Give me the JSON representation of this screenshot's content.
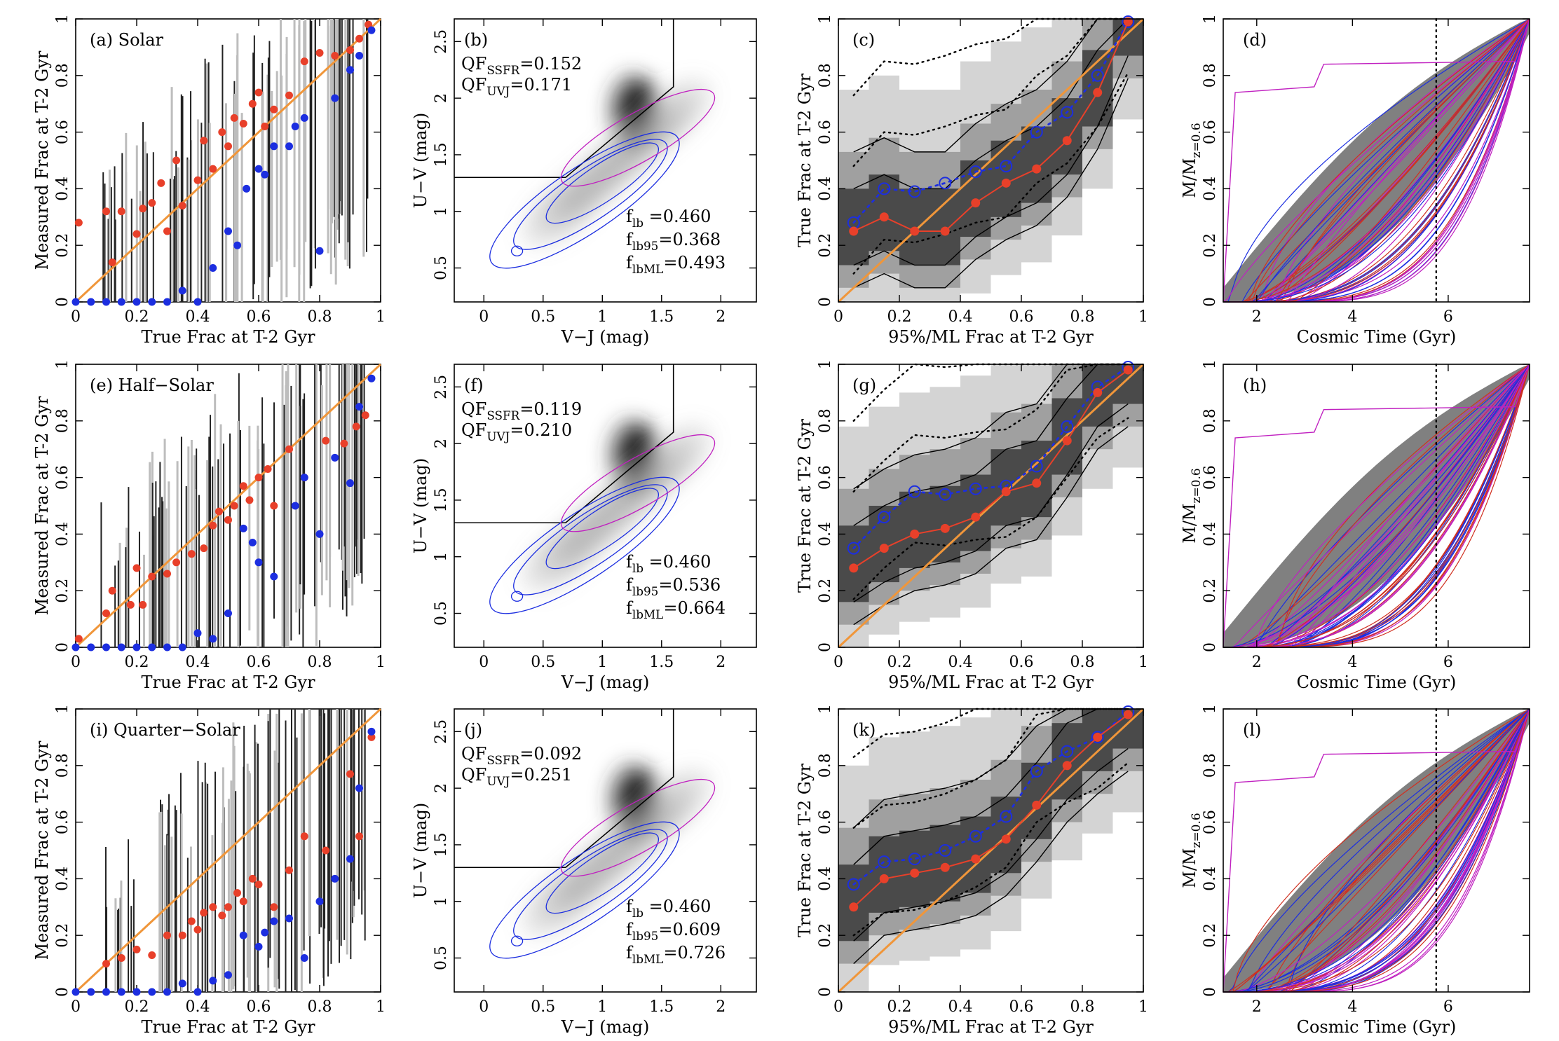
{
  "chart_data": [
    {
      "type": "scatter",
      "panel": "a",
      "label": "(a) Solar",
      "xlabel": "True Frac at T-2 Gyr",
      "ylabel": "Measured Frac at T-2 Gyr",
      "xlim": [
        0,
        1
      ],
      "ylim": [
        0,
        1
      ],
      "xticks": [
        "0",
        "0.2",
        "0.4",
        "0.6",
        "0.8",
        "1"
      ],
      "yticks": [
        "0",
        "0.2",
        "0.4",
        "0.6",
        "0.8",
        "1"
      ],
      "reference_line": "one-to-one",
      "series": [
        {
          "name": "red points",
          "color": "#e8402a",
          "x": [
            0.01,
            0.1,
            0.12,
            0.15,
            0.2,
            0.22,
            0.25,
            0.28,
            0.3,
            0.33,
            0.35,
            0.4,
            0.42,
            0.45,
            0.48,
            0.5,
            0.52,
            0.55,
            0.58,
            0.6,
            0.62,
            0.65,
            0.7,
            0.75,
            0.8,
            0.85,
            0.9,
            0.93,
            0.96
          ],
          "y": [
            0.28,
            0.32,
            0.14,
            0.32,
            0.24,
            0.33,
            0.35,
            0.42,
            0.25,
            0.5,
            0.34,
            0.43,
            0.57,
            0.47,
            0.6,
            0.55,
            0.65,
            0.63,
            0.7,
            0.74,
            0.62,
            0.68,
            0.73,
            0.85,
            0.88,
            0.87,
            0.89,
            0.93,
            0.98
          ]
        },
        {
          "name": "blue points",
          "color": "#1c2ee0",
          "x": [
            0.0,
            0.05,
            0.1,
            0.15,
            0.2,
            0.25,
            0.3,
            0.35,
            0.4,
            0.45,
            0.5,
            0.53,
            0.56,
            0.6,
            0.62,
            0.65,
            0.7,
            0.72,
            0.75,
            0.8,
            0.85,
            0.9,
            0.93,
            0.97
          ],
          "y": [
            0.0,
            0.0,
            0.0,
            0.0,
            0.0,
            0.0,
            0.0,
            0.04,
            0.0,
            0.12,
            0.25,
            0.2,
            0.4,
            0.47,
            0.45,
            0.55,
            0.55,
            0.62,
            0.65,
            0.18,
            0.72,
            0.82,
            0.87,
            0.96
          ]
        }
      ]
    },
    {
      "type": "scatter",
      "panel": "b",
      "label": "(b)",
      "xlabel": "V−J (mag)",
      "ylabel": "U−V (mag)",
      "xlim": [
        -0.25,
        2.3
      ],
      "ylim": [
        0.2,
        2.7
      ],
      "xticks": [
        "0",
        "0.5",
        "1",
        "1.5",
        "2"
      ],
      "yticks": [
        "0.5",
        "1",
        "1.5",
        "2",
        "2.5"
      ],
      "annotations": {
        "qf_ssfr": "QF",
        "qf_ssfr_sub": "SSFR",
        "qf_ssfr_val": "=0.152",
        "qf_uvj": "QF",
        "qf_uvj_sub": "UVJ",
        "qf_uvj_val": "=0.171",
        "flb": "f",
        "flb_sub": "lb",
        "flb_val": "=0.460",
        "flb95": "f",
        "flb95_sub": "lb95",
        "flb95_val": "=0.368",
        "flbml": "f",
        "flbml_sub": "lbML",
        "flbml_val": "=0.493"
      }
    },
    {
      "type": "line",
      "panel": "c",
      "label": "(c)",
      "xlabel": "95%/ML Frac at T-2 Gyr",
      "ylabel": "True Frac at T-2 Gyr",
      "xlim": [
        0,
        1
      ],
      "ylim": [
        0,
        1
      ],
      "xticks": [
        "0",
        "0.2",
        "0.4",
        "0.6",
        "0.8",
        "1"
      ],
      "yticks": [
        "0",
        "0.2",
        "0.4",
        "0.6",
        "0.8",
        "1"
      ],
      "series": [
        {
          "name": "95% median",
          "color": "#1c2ee0",
          "x": [
            0.05,
            0.15,
            0.25,
            0.35,
            0.45,
            0.55,
            0.65,
            0.75,
            0.85,
            0.95
          ],
          "y": [
            0.28,
            0.4,
            0.39,
            0.42,
            0.46,
            0.48,
            0.6,
            0.67,
            0.8,
            0.99
          ]
        },
        {
          "name": "ML median",
          "color": "#e8402a",
          "x": [
            0.05,
            0.15,
            0.25,
            0.35,
            0.45,
            0.55,
            0.65,
            0.75,
            0.85,
            0.95
          ],
          "y": [
            0.25,
            0.3,
            0.25,
            0.25,
            0.35,
            0.42,
            0.47,
            0.57,
            0.74,
            0.99
          ]
        }
      ]
    },
    {
      "type": "line",
      "panel": "d",
      "label": "(d)",
      "xlabel": "Cosmic Time (Gyr)",
      "ylabel": "M/M",
      "ylabel_sub": "z=0.6",
      "xlim": [
        1.3,
        7.7
      ],
      "ylim": [
        0,
        1
      ],
      "xticks": [
        "2",
        "4",
        "6"
      ],
      "yticks": [
        "0",
        "0.2",
        "0.4",
        "0.6",
        "0.8",
        "1"
      ],
      "vline": 5.75
    },
    {
      "type": "scatter",
      "panel": "e",
      "label": "(e) Half−Solar",
      "xlabel": "True Frac at T-2 Gyr",
      "ylabel": "Measured Frac at T-2 Gyr",
      "xlim": [
        0,
        1
      ],
      "ylim": [
        0,
        1
      ],
      "xticks": [
        "0",
        "0.2",
        "0.4",
        "0.6",
        "0.8",
        "1"
      ],
      "yticks": [
        "0",
        "0.2",
        "0.4",
        "0.6",
        "0.8",
        "1"
      ],
      "reference_line": "one-to-one",
      "series": [
        {
          "name": "red points",
          "color": "#e8402a",
          "x": [
            0.01,
            0.1,
            0.12,
            0.18,
            0.2,
            0.22,
            0.25,
            0.3,
            0.33,
            0.38,
            0.42,
            0.45,
            0.47,
            0.5,
            0.52,
            0.55,
            0.57,
            0.6,
            0.63,
            0.65,
            0.7,
            0.75,
            0.82,
            0.88,
            0.92,
            0.95
          ],
          "y": [
            0.03,
            0.12,
            0.2,
            0.15,
            0.28,
            0.15,
            0.25,
            0.26,
            0.3,
            0.33,
            0.35,
            0.43,
            0.48,
            0.45,
            0.5,
            0.57,
            0.52,
            0.6,
            0.63,
            0.5,
            0.7,
            0.6,
            0.73,
            0.72,
            0.78,
            0.82
          ]
        },
        {
          "name": "blue points",
          "color": "#1c2ee0",
          "x": [
            0.0,
            0.05,
            0.1,
            0.15,
            0.2,
            0.25,
            0.3,
            0.35,
            0.4,
            0.45,
            0.5,
            0.55,
            0.58,
            0.6,
            0.65,
            0.72,
            0.75,
            0.8,
            0.85,
            0.9,
            0.93,
            0.97
          ],
          "y": [
            0.0,
            0.0,
            0.0,
            0.0,
            0.0,
            0.0,
            0.0,
            0.0,
            0.05,
            0.03,
            0.12,
            0.42,
            0.37,
            0.3,
            0.25,
            0.5,
            0.6,
            0.4,
            0.67,
            0.58,
            0.85,
            0.95
          ]
        }
      ]
    },
    {
      "type": "scatter",
      "panel": "f",
      "label": "(f)",
      "xlabel": "V−J (mag)",
      "ylabel": "U−V (mag)",
      "xlim": [
        -0.25,
        2.3
      ],
      "ylim": [
        0.2,
        2.7
      ],
      "xticks": [
        "0",
        "0.5",
        "1",
        "1.5",
        "2"
      ],
      "yticks": [
        "0.5",
        "1",
        "1.5",
        "2",
        "2.5"
      ],
      "annotations": {
        "qf_ssfr": "QF",
        "qf_ssfr_sub": "SSFR",
        "qf_ssfr_val": "=0.119",
        "qf_uvj": "QF",
        "qf_uvj_sub": "UVJ",
        "qf_uvj_val": "=0.210",
        "flb": "f",
        "flb_sub": "lb",
        "flb_val": "=0.460",
        "flb95": "f",
        "flb95_sub": "lb95",
        "flb95_val": "=0.536",
        "flbml": "f",
        "flbml_sub": "lbML",
        "flbml_val": "=0.664"
      }
    },
    {
      "type": "line",
      "panel": "g",
      "label": "(g)",
      "xlabel": "95%/ML Frac at T-2 Gyr",
      "ylabel": "True Frac at T-2 Gyr",
      "xlim": [
        0,
        1
      ],
      "ylim": [
        0,
        1
      ],
      "xticks": [
        "0",
        "0.2",
        "0.4",
        "0.6",
        "0.8",
        "1"
      ],
      "yticks": [
        "0",
        "0.2",
        "0.4",
        "0.6",
        "0.8",
        "1"
      ],
      "series": [
        {
          "name": "95% median",
          "color": "#1c2ee0",
          "x": [
            0.05,
            0.15,
            0.25,
            0.35,
            0.45,
            0.55,
            0.65,
            0.75,
            0.85,
            0.95
          ],
          "y": [
            0.35,
            0.46,
            0.55,
            0.54,
            0.56,
            0.57,
            0.64,
            0.78,
            0.92,
            0.99
          ]
        },
        {
          "name": "ML median",
          "color": "#e8402a",
          "x": [
            0.05,
            0.15,
            0.25,
            0.35,
            0.45,
            0.55,
            0.65,
            0.75,
            0.85,
            0.95
          ],
          "y": [
            0.28,
            0.35,
            0.4,
            0.42,
            0.46,
            0.55,
            0.58,
            0.73,
            0.9,
            0.98
          ]
        }
      ]
    },
    {
      "type": "line",
      "panel": "h",
      "label": "(h)",
      "xlabel": "Cosmic Time (Gyr)",
      "ylabel": "M/M",
      "ylabel_sub": "z=0.6",
      "xlim": [
        1.3,
        7.7
      ],
      "ylim": [
        0,
        1
      ],
      "xticks": [
        "2",
        "4",
        "6"
      ],
      "yticks": [
        "0",
        "0.2",
        "0.4",
        "0.6",
        "0.8",
        "1"
      ],
      "vline": 5.75
    },
    {
      "type": "scatter",
      "panel": "i",
      "label": "(i) Quarter−Solar",
      "xlabel": "True Frac at T-2 Gyr",
      "ylabel": "Measured Frac at T-2 Gyr",
      "xlim": [
        0,
        1
      ],
      "ylim": [
        0,
        1
      ],
      "xticks": [
        "0",
        "0.2",
        "0.4",
        "0.6",
        "0.8",
        "1"
      ],
      "yticks": [
        "0",
        "0.2",
        "0.4",
        "0.6",
        "0.8",
        "1"
      ],
      "reference_line": "one-to-one",
      "series": [
        {
          "name": "red points",
          "color": "#e8402a",
          "x": [
            0.1,
            0.15,
            0.2,
            0.25,
            0.3,
            0.35,
            0.38,
            0.4,
            0.42,
            0.45,
            0.48,
            0.5,
            0.53,
            0.55,
            0.58,
            0.6,
            0.65,
            0.7,
            0.75,
            0.82,
            0.9,
            0.93,
            0.97
          ],
          "y": [
            0.1,
            0.12,
            0.15,
            0.13,
            0.2,
            0.2,
            0.25,
            0.22,
            0.28,
            0.3,
            0.27,
            0.3,
            0.35,
            0.32,
            0.4,
            0.38,
            0.3,
            0.43,
            0.55,
            0.5,
            0.77,
            0.55,
            0.9
          ]
        },
        {
          "name": "blue points",
          "color": "#1c2ee0",
          "x": [
            0.0,
            0.05,
            0.1,
            0.15,
            0.2,
            0.25,
            0.3,
            0.35,
            0.4,
            0.45,
            0.5,
            0.55,
            0.6,
            0.62,
            0.65,
            0.7,
            0.75,
            0.8,
            0.85,
            0.9,
            0.93,
            0.97
          ],
          "y": [
            0.0,
            0.0,
            0.0,
            0.0,
            0.0,
            0.0,
            0.0,
            0.03,
            0.0,
            0.04,
            0.06,
            0.2,
            0.16,
            0.21,
            0.25,
            0.26,
            0.12,
            0.32,
            0.4,
            0.47,
            0.72,
            0.92
          ]
        }
      ]
    },
    {
      "type": "scatter",
      "panel": "j",
      "label": "(j)",
      "xlabel": "V−J (mag)",
      "ylabel": "U−V (mag)",
      "xlim": [
        -0.25,
        2.3
      ],
      "ylim": [
        0.2,
        2.7
      ],
      "xticks": [
        "0",
        "0.5",
        "1",
        "1.5",
        "2"
      ],
      "yticks": [
        "0.5",
        "1",
        "1.5",
        "2",
        "2.5"
      ],
      "annotations": {
        "qf_ssfr": "QF",
        "qf_ssfr_sub": "SSFR",
        "qf_ssfr_val": "=0.092",
        "qf_uvj": "QF",
        "qf_uvj_sub": "UVJ",
        "qf_uvj_val": "=0.251",
        "flb": "f",
        "flb_sub": "lb",
        "flb_val": "=0.460",
        "flb95": "f",
        "flb95_sub": "lb95",
        "flb95_val": "=0.609",
        "flbml": "f",
        "flbml_sub": "lbML",
        "flbml_val": "=0.726"
      }
    },
    {
      "type": "line",
      "panel": "k",
      "label": "(k)",
      "xlabel": "95%/ML Frac at T-2 Gyr",
      "ylabel": "True Frac at T-2 Gyr",
      "xlim": [
        0,
        1
      ],
      "ylim": [
        0,
        1
      ],
      "xticks": [
        "0",
        "0.2",
        "0.4",
        "0.6",
        "0.8",
        "1"
      ],
      "yticks": [
        "0",
        "0.2",
        "0.4",
        "0.6",
        "0.8",
        "1"
      ],
      "series": [
        {
          "name": "95% median",
          "color": "#1c2ee0",
          "x": [
            0.05,
            0.15,
            0.25,
            0.35,
            0.45,
            0.55,
            0.65,
            0.75,
            0.85,
            0.95
          ],
          "y": [
            0.38,
            0.46,
            0.47,
            0.5,
            0.55,
            0.62,
            0.78,
            0.85,
            0.9,
            0.99
          ]
        },
        {
          "name": "ML median",
          "color": "#e8402a",
          "x": [
            0.05,
            0.15,
            0.25,
            0.35,
            0.45,
            0.55,
            0.65,
            0.75,
            0.85,
            0.95
          ],
          "y": [
            0.3,
            0.4,
            0.42,
            0.44,
            0.47,
            0.54,
            0.66,
            0.8,
            0.9,
            0.98
          ]
        }
      ]
    },
    {
      "type": "line",
      "panel": "l",
      "label": "(l)",
      "xlabel": "Cosmic Time (Gyr)",
      "ylabel": "M/M",
      "ylabel_sub": "z=0.6",
      "xlim": [
        1.3,
        7.7
      ],
      "ylim": [
        0,
        1
      ],
      "xticks": [
        "2",
        "4",
        "6"
      ],
      "yticks": [
        "0",
        "0.2",
        "0.4",
        "0.6",
        "0.8",
        "1"
      ],
      "vline": 5.75
    }
  ],
  "colors": {
    "red": "#e8402a",
    "blue": "#1c2ee0",
    "orange": "#f0963a",
    "magenta": "#c020c0",
    "dark_band": "#4a4a4a",
    "mid_band": "#a0a0a0",
    "light_band": "#d4d4d4"
  }
}
